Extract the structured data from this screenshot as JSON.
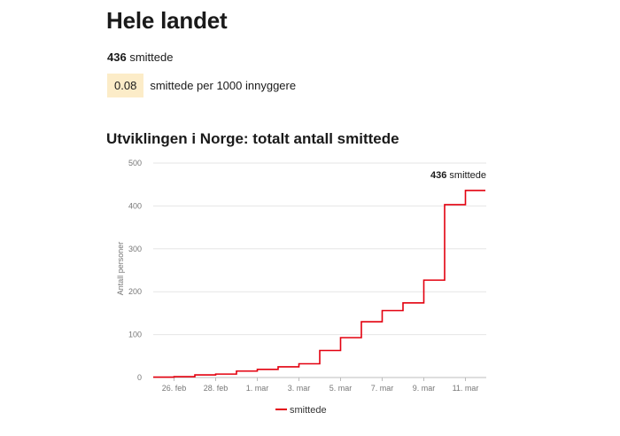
{
  "page": {
    "title": "Hele landet",
    "total_value": "436",
    "total_unit": "smittede",
    "rate_value": "0.08",
    "rate_label": "smittede per 1000 innyggere"
  },
  "chart_title": "Utviklingen i Norge: totalt antall smittede",
  "colors": {
    "line": "#e3000f",
    "badge": "#fcecc8",
    "grid": "#e6e6e6"
  },
  "chart_data": {
    "type": "line",
    "step": true,
    "title": "Utviklingen i Norge: totalt antall smittede",
    "xlabel": "",
    "ylabel": "Antall personer",
    "ylim": [
      0,
      500
    ],
    "yticks": [
      0,
      100,
      200,
      300,
      400,
      500
    ],
    "xticks": [
      "26. feb",
      "28. feb",
      "1. mar",
      "3. mar",
      "5. mar",
      "7. mar",
      "9. mar",
      "11. mar"
    ],
    "legend": "bottom-center",
    "grid": "horizontal",
    "annotation": {
      "value": "436",
      "text": "smittede"
    },
    "series": [
      {
        "name": "smittede",
        "x": [
          "25. feb",
          "26. feb",
          "27. feb",
          "28. feb",
          "29. feb",
          "1. mar",
          "2. mar",
          "3. mar",
          "4. mar",
          "5. mar",
          "6. mar",
          "7. mar",
          "8. mar",
          "9. mar",
          "10. mar",
          "11. mar"
        ],
        "values": [
          1,
          2,
          6,
          8,
          15,
          19,
          25,
          32,
          63,
          93,
          130,
          156,
          174,
          227,
          403,
          436
        ]
      }
    ]
  }
}
